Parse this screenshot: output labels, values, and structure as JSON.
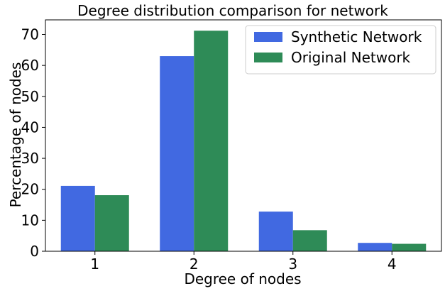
{
  "chart_data": {
    "type": "bar",
    "title": "Degree distribution comparison for network",
    "xlabel": "Degree of nodes",
    "ylabel": "Percentage of nodes",
    "categories": [
      "1",
      "2",
      "3",
      "4"
    ],
    "series": [
      {
        "name": "Synthetic Network",
        "color": "#4169e1",
        "values": [
          21.1,
          63.0,
          12.8,
          2.7
        ]
      },
      {
        "name": "Original Network",
        "color": "#2e8b57",
        "values": [
          18.1,
          71.2,
          6.8,
          2.4
        ]
      }
    ],
    "ylim": [
      0,
      74.7
    ],
    "yticks": [
      0,
      10,
      20,
      30,
      40,
      50,
      60,
      70
    ],
    "grid": false,
    "legend_position": "top-right"
  }
}
